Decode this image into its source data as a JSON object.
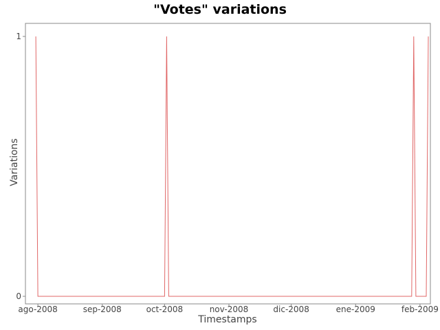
{
  "chart_data": {
    "type": "line",
    "title": "\"Votes\" variations",
    "xlabel": "Timestamps",
    "ylabel": "Variations",
    "grid": false,
    "ylim": [
      0,
      1
    ],
    "xlim": [
      "2008-07-26",
      "2009-02-06"
    ],
    "yticks": [
      {
        "value": 0,
        "label": "0"
      },
      {
        "value": 1,
        "label": "1"
      }
    ],
    "xticks": [
      {
        "value": "2008-08-01",
        "label": "ago-2008"
      },
      {
        "value": "2008-09-01",
        "label": "sep-2008"
      },
      {
        "value": "2008-10-01",
        "label": "oct-2008"
      },
      {
        "value": "2008-11-01",
        "label": "nov-2008"
      },
      {
        "value": "2008-12-01",
        "label": "dic-2008"
      },
      {
        "value": "2009-01-01",
        "label": "ene-2009"
      },
      {
        "value": "2009-02-01",
        "label": "feb-2009"
      }
    ],
    "series": [
      {
        "color": "#e06666",
        "points": [
          {
            "x": "2008-07-31",
            "y": 1
          },
          {
            "x": "2008-08-01",
            "y": 0
          },
          {
            "x": "2008-10-01",
            "y": 0
          },
          {
            "x": "2008-10-02",
            "y": 1
          },
          {
            "x": "2008-10-03",
            "y": 0
          },
          {
            "x": "2009-01-28",
            "y": 0
          },
          {
            "x": "2009-01-29",
            "y": 1
          },
          {
            "x": "2009-01-30",
            "y": 0
          },
          {
            "x": "2009-02-04",
            "y": 0
          },
          {
            "x": "2009-02-05",
            "y": 1
          }
        ]
      }
    ]
  }
}
